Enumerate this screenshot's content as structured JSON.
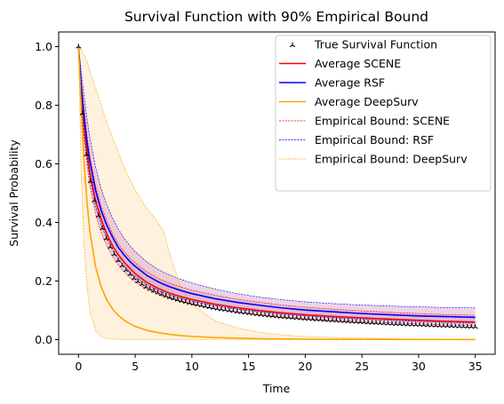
{
  "chart_data": {
    "type": "line",
    "title": "Survival Function with 90% Empirical Bound",
    "xlabel": "Time",
    "ylabel": "Survival Probability",
    "xlim": [
      -1.75,
      36.75
    ],
    "ylim": [
      -0.05,
      1.05
    ],
    "xticks": [
      0,
      5,
      10,
      15,
      20,
      25,
      30,
      35
    ],
    "yticks": [
      0.0,
      0.2,
      0.4,
      0.6,
      0.8,
      1.0
    ],
    "xtick_labels": [
      "0",
      "5",
      "10",
      "15",
      "20",
      "25",
      "30",
      "35"
    ],
    "ytick_labels": [
      "0.0",
      "0.2",
      "0.4",
      "0.6",
      "0.8",
      "1.0"
    ],
    "grid": false,
    "legend_position": "top-right",
    "x": [
      0,
      0.25,
      0.5,
      0.75,
      1,
      1.5,
      2,
      2.5,
      3,
      3.5,
      4,
      4.5,
      5,
      6,
      7,
      7.5,
      8,
      9,
      10,
      12,
      14,
      16,
      18,
      20,
      22,
      25,
      28,
      30,
      32,
      35
    ],
    "series": [
      {
        "name": "True Survival Function",
        "color": "#000000",
        "marker": "tri_up",
        "values": [
          1.0,
          0.82,
          0.7,
          0.615,
          0.55,
          0.455,
          0.39,
          0.34,
          0.3,
          0.27,
          0.245,
          0.225,
          0.205,
          0.178,
          0.16,
          0.152,
          0.145,
          0.133,
          0.123,
          0.107,
          0.095,
          0.085,
          0.077,
          0.071,
          0.066,
          0.059,
          0.053,
          0.05,
          0.047,
          0.043
        ]
      },
      {
        "name": "Average SCENE",
        "color": "#ff0000",
        "values": [
          1.0,
          0.84,
          0.73,
          0.64,
          0.57,
          0.475,
          0.41,
          0.36,
          0.32,
          0.29,
          0.265,
          0.245,
          0.225,
          0.196,
          0.175,
          0.167,
          0.159,
          0.147,
          0.137,
          0.121,
          0.109,
          0.099,
          0.091,
          0.085,
          0.08,
          0.074,
          0.069,
          0.066,
          0.063,
          0.06
        ]
      },
      {
        "name": "Average RSF",
        "color": "#0000ff",
        "values": [
          1.0,
          0.86,
          0.76,
          0.675,
          0.61,
          0.51,
          0.44,
          0.39,
          0.35,
          0.315,
          0.29,
          0.268,
          0.25,
          0.22,
          0.198,
          0.189,
          0.181,
          0.168,
          0.157,
          0.14,
          0.127,
          0.117,
          0.108,
          0.101,
          0.096,
          0.089,
          0.084,
          0.081,
          0.079,
          0.076
        ]
      },
      {
        "name": "Average DeepSurv",
        "color": "#ffa500",
        "values": [
          1.0,
          0.78,
          0.6,
          0.47,
          0.37,
          0.25,
          0.18,
          0.135,
          0.105,
          0.083,
          0.067,
          0.055,
          0.045,
          0.032,
          0.024,
          0.021,
          0.018,
          0.014,
          0.011,
          0.007,
          0.005,
          0.003,
          0.002,
          0.0015,
          0.001,
          0.0008,
          0.0006,
          0.0005,
          0.0004,
          0.0003
        ]
      }
    ],
    "bounds": [
      {
        "name": "Empirical Bound: SCENE",
        "color": "#ff0000",
        "fill": "#d8a0c4",
        "lower": [
          1.0,
          0.8,
          0.68,
          0.595,
          0.525,
          0.43,
          0.365,
          0.32,
          0.283,
          0.255,
          0.232,
          0.213,
          0.197,
          0.172,
          0.154,
          0.147,
          0.14,
          0.129,
          0.12,
          0.105,
          0.094,
          0.085,
          0.078,
          0.072,
          0.067,
          0.061,
          0.056,
          0.053,
          0.05,
          0.047
        ],
        "upper": [
          1.0,
          0.88,
          0.78,
          0.695,
          0.625,
          0.525,
          0.455,
          0.405,
          0.362,
          0.328,
          0.302,
          0.28,
          0.262,
          0.232,
          0.21,
          0.201,
          0.193,
          0.18,
          0.169,
          0.152,
          0.138,
          0.127,
          0.118,
          0.111,
          0.105,
          0.098,
          0.092,
          0.089,
          0.086,
          0.083
        ]
      },
      {
        "name": "Empirical Bound: RSF",
        "color": "#0000ff",
        "fill": "#d8a0c4",
        "lower": [
          1.0,
          0.81,
          0.7,
          0.615,
          0.55,
          0.455,
          0.39,
          0.345,
          0.305,
          0.275,
          0.252,
          0.232,
          0.215,
          0.188,
          0.168,
          0.16,
          0.153,
          0.141,
          0.131,
          0.116,
          0.104,
          0.095,
          0.087,
          0.081,
          0.076,
          0.07,
          0.065,
          0.062,
          0.059,
          0.056
        ],
        "upper": [
          1.0,
          0.91,
          0.83,
          0.755,
          0.69,
          0.59,
          0.515,
          0.46,
          0.415,
          0.378,
          0.347,
          0.322,
          0.3,
          0.266,
          0.24,
          0.23,
          0.221,
          0.206,
          0.193,
          0.173,
          0.157,
          0.145,
          0.136,
          0.129,
          0.124,
          0.118,
          0.114,
          0.112,
          0.11,
          0.108
        ]
      },
      {
        "name": "Empirical Bound: DeepSurv",
        "color": "#ffa500",
        "fill": "#fdebd0",
        "lower": [
          1.0,
          0.55,
          0.32,
          0.18,
          0.1,
          0.03,
          0.01,
          0.004,
          0.002,
          0.001,
          0.0005,
          0.0003,
          0.0002,
          0.0001,
          0.0,
          0.0,
          0.0,
          0.0,
          0.0,
          0.0,
          0.0,
          0.0,
          0.0,
          0.0,
          0.0,
          0.0,
          0.0,
          0.0,
          0.0,
          0.0
        ],
        "upper": [
          1.0,
          0.99,
          0.97,
          0.95,
          0.92,
          0.86,
          0.8,
          0.74,
          0.69,
          0.64,
          0.59,
          0.55,
          0.51,
          0.45,
          0.4,
          0.37,
          0.3,
          0.18,
          0.12,
          0.065,
          0.04,
          0.025,
          0.016,
          0.011,
          0.008,
          0.005,
          0.003,
          0.002,
          0.0015,
          0.001
        ]
      }
    ]
  }
}
